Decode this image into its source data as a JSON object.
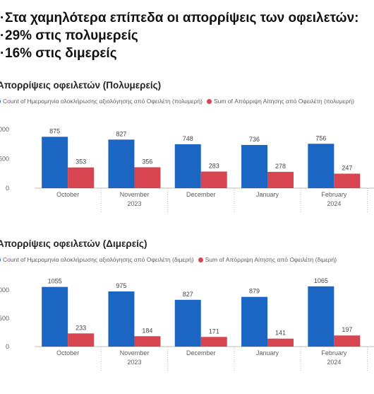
{
  "headline": {
    "line1": "Στα χαμηλότερα επίπεδα οι απορρίψεις των οφειλετών:",
    "line2": "29% στις πολυμερείς",
    "line3": "16% στις διμερείς"
  },
  "colors": {
    "count": "#1a66c2",
    "reject": "#d64550",
    "axis": "#bdbdbd",
    "text": "#605e5c"
  },
  "chart_data": [
    {
      "type": "bar",
      "title": "Απορρίψεις οφειλετών (Πολυμερείς)",
      "categories": [
        "October",
        "November",
        "December",
        "January",
        "February",
        ""
      ],
      "year_labels": [
        "",
        "2023",
        "",
        "",
        "2024",
        ""
      ],
      "series": [
        {
          "name": "Count of Ημερομηνία ολοκλήρωσης αξιολόγησης από Οφειλέτη (πολυμερή)",
          "values": [
            875,
            827,
            748,
            736,
            756,
            1000
          ]
        },
        {
          "name": "Sum of Απόρριψη Αίτησης από Οφειλέτη (πολυμερή)",
          "values": [
            353,
            356,
            283,
            278,
            247,
            null
          ]
        }
      ],
      "data_labels": [
        [
          "875",
          "827",
          "748",
          "736",
          "756",
          ""
        ],
        [
          "353",
          "356",
          "283",
          "278",
          "247",
          ""
        ]
      ],
      "yticks": [
        "1000",
        "500",
        "0"
      ],
      "ylim": [
        0,
        1000
      ],
      "legend": "top-left"
    },
    {
      "type": "bar",
      "title": "Απορρίψεις οφειλετών (Διμερείς)",
      "categories": [
        "October",
        "November",
        "December",
        "January",
        "February",
        ""
      ],
      "year_labels": [
        "",
        "2023",
        "",
        "",
        "2024",
        ""
      ],
      "series": [
        {
          "name": "Count of Ημερομηνία ολοκλήρωσης αξιολόγησης από Οφειλέτη (διμερή)",
          "values": [
            1055,
            975,
            827,
            879,
            1065,
            950
          ]
        },
        {
          "name": "Sum of Απόρριψη Αίτησης από Οφειλέτη (διμερή)",
          "values": [
            233,
            184,
            171,
            141,
            197,
            null
          ]
        }
      ],
      "data_labels": [
        [
          "1055",
          "975",
          "827",
          "879",
          "1065",
          ""
        ],
        [
          "233",
          "184",
          "171",
          "141",
          "197",
          ""
        ]
      ],
      "yticks": [
        "1000",
        "500",
        "0"
      ],
      "ylim": [
        0,
        1000
      ],
      "legend": "top-left"
    }
  ]
}
